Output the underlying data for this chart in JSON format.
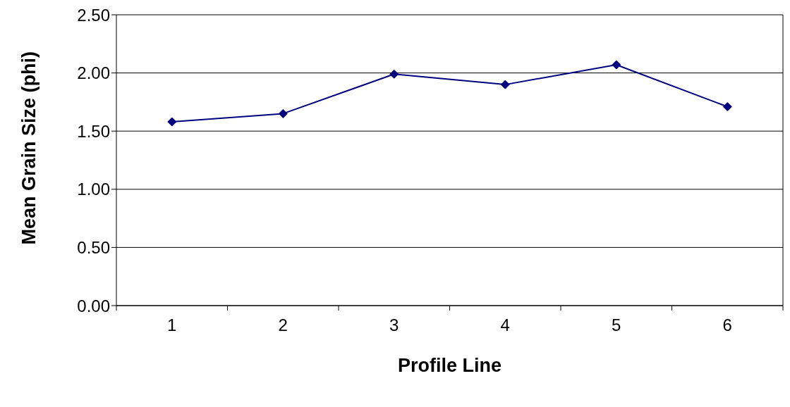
{
  "chart_data": {
    "type": "line",
    "xlabel": "Profile Line",
    "ylabel": "Mean Grain Size (phi)",
    "categories": [
      "1",
      "2",
      "3",
      "4",
      "5",
      "6"
    ],
    "series": [
      {
        "color": "#000080",
        "values": [
          1.58,
          1.65,
          1.99,
          1.9,
          2.07,
          1.71
        ]
      }
    ],
    "ylim": [
      0,
      2.5
    ],
    "yticks": [
      {
        "value": 0,
        "label": "0.00"
      },
      {
        "value": 0.5,
        "label": "0.50"
      },
      {
        "value": 1,
        "label": "1.00"
      },
      {
        "value": 1.5,
        "label": "1.50"
      },
      {
        "value": 2,
        "label": "2.00"
      },
      {
        "value": 2.5,
        "label": "2.50"
      }
    ],
    "grid": "y",
    "marker": "diamond",
    "line_style": "solid",
    "legend": false
  }
}
